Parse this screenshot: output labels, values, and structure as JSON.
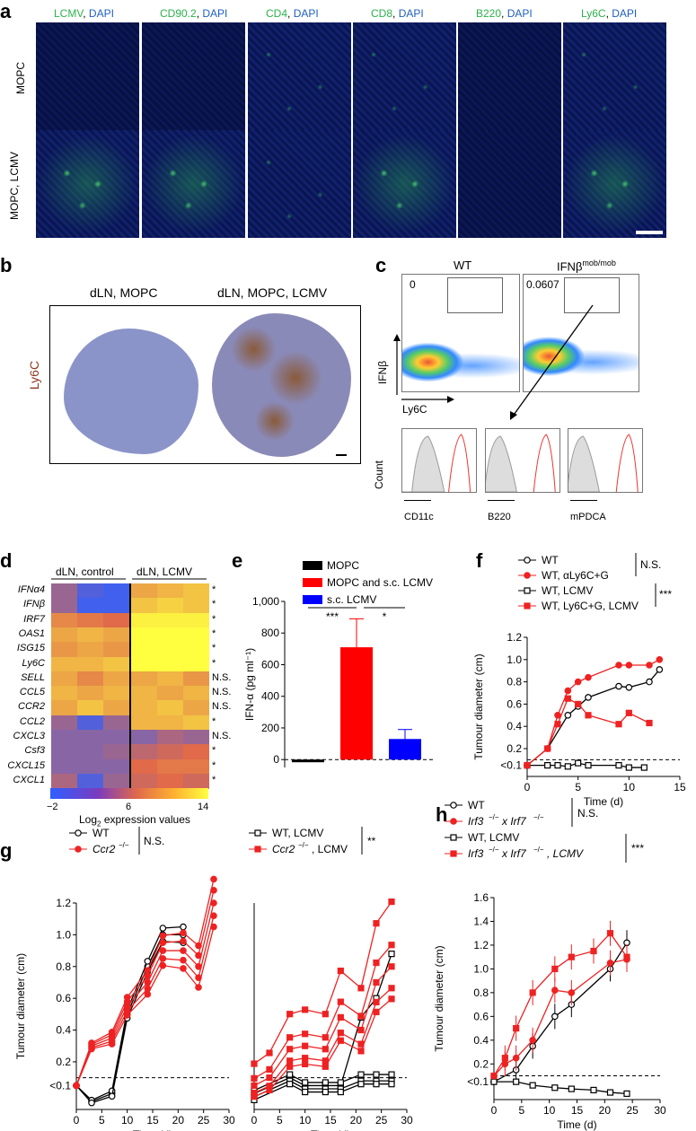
{
  "panel_a": {
    "label": "a",
    "columns": [
      {
        "marker": "LCMV",
        "sep": ", ",
        "stain": "DAPI"
      },
      {
        "marker": "CD90.2",
        "sep": ", ",
        "stain": "DAPI"
      },
      {
        "marker": "CD4",
        "sep": ", ",
        "stain": "DAPI"
      },
      {
        "marker": "CD8",
        "sep": ", ",
        "stain": "DAPI"
      },
      {
        "marker": "B220",
        "sep": ", ",
        "stain": "DAPI"
      },
      {
        "marker": "Ly6C",
        "sep": ", ",
        "stain": "DAPI"
      }
    ],
    "rows": [
      "MOPC",
      "MOPC, LCMV"
    ]
  },
  "panel_b": {
    "label": "b",
    "left_title": "dLN, MOPC",
    "right_title": "dLN, MOPC, LCMV",
    "stain": "Ly6C"
  },
  "panel_c": {
    "label": "c",
    "col1": "WT",
    "col2": "IFNβ",
    "col2_sup": "mob/mob",
    "gate1": "0",
    "gate2": "0.0607",
    "yaxis": "IFNβ",
    "xaxis": "Ly6C",
    "hist_y": "Count",
    "hist_x": [
      "CD11c",
      "B220",
      "mPDCA"
    ]
  },
  "panel_d": {
    "label": "d",
    "group1": "dLN, control",
    "group2": "dLN, LCMV",
    "genes": [
      "IFNα4",
      "IFNβ",
      "IRF7",
      "OAS1",
      "ISG15",
      "Ly6C",
      "SELL",
      "CCL5",
      "CCR2",
      "CCL2",
      "CXCL3",
      "Csf3",
      "CXCL15",
      "CXCL1"
    ],
    "sig": [
      "*",
      "*",
      "*",
      "*",
      "*",
      "*",
      "N.S.",
      "N.S.",
      "N.S.",
      "*",
      "N.S.",
      "*",
      "*",
      "*"
    ],
    "scale": [
      "−2",
      "6",
      "14"
    ],
    "scale_label_pre": "Log",
    "scale_label_sub": "2",
    "scale_label_post": " expression values",
    "colors": {
      "low": "#2f5fff",
      "mid": "#e06a4a",
      "high": "#ffff40"
    }
  },
  "chart_data": [
    {
      "type": "bar",
      "panel": "e",
      "categories": [
        "MOPC",
        "MOPC and s.c. LCMV",
        "s.c. LCMV"
      ],
      "values": [
        -15,
        710,
        130
      ],
      "errors": [
        5,
        180,
        60
      ],
      "colors": [
        "#000000",
        "#ff0000",
        "#0000ff"
      ],
      "ylabel": "IFN-α (pg ml⁻¹)",
      "ylim": [
        -50,
        1000
      ],
      "yticks": [
        "0",
        "200",
        "400",
        "600",
        "800",
        "1,000"
      ],
      "sig": [
        "***",
        "*"
      ]
    },
    {
      "type": "line",
      "panel": "f",
      "series": [
        {
          "name": "WT",
          "x": [
            0,
            2,
            4,
            5,
            6,
            9,
            10,
            12,
            13
          ],
          "y": [
            0.05,
            0.2,
            0.5,
            0.58,
            0.66,
            0.76,
            0.75,
            0.8,
            0.91
          ]
        },
        {
          "name": "WT, αLy6C+G",
          "x": [
            0,
            2,
            3,
            4,
            5,
            6,
            9,
            10,
            12,
            13
          ],
          "y": [
            0.05,
            0.2,
            0.5,
            0.72,
            0.8,
            0.84,
            0.95,
            0.95,
            0.95,
            1.0
          ]
        },
        {
          "name": "WT, LCMV",
          "x": [
            0,
            2,
            3,
            4,
            5,
            6,
            9,
            10,
            11.5
          ],
          "y": [
            0.05,
            0.05,
            0.05,
            0.04,
            0.07,
            0.05,
            0.05,
            0.03,
            0.03
          ]
        },
        {
          "name": "WT, Ly6C+G, LCMV",
          "x": [
            0,
            2,
            3,
            4,
            5,
            6,
            9,
            10,
            12
          ],
          "y": [
            0.05,
            0.2,
            0.42,
            0.65,
            0.6,
            0.5,
            0.42,
            0.52,
            0.43
          ]
        }
      ],
      "xlabel": "Time (d)",
      "ylabel": "Tumour diameter (cm)",
      "yticks": [
        "<0.1",
        "0.2",
        "0.4",
        "0.6",
        "0.8",
        "1.0",
        "1.2"
      ],
      "xticks": [
        "0",
        "5",
        "10",
        "15"
      ],
      "sig1": "N.S.",
      "sig2": "***"
    },
    {
      "type": "line",
      "panel": "g-left",
      "series": [
        {
          "name": "WT",
          "x": [
            0,
            3,
            7,
            10,
            14,
            17,
            21
          ],
          "y": [
            0.05,
            -0.05,
            0.0,
            0.5,
            0.8,
            1.0,
            1.0
          ]
        },
        {
          "name": "Ccr2−/−",
          "x": [
            0,
            3,
            7,
            10,
            14,
            17,
            21,
            24,
            27
          ],
          "y": [
            0.05,
            0.3,
            0.35,
            0.55,
            0.7,
            0.9,
            0.9,
            0.8,
            1.2
          ]
        }
      ],
      "legend": [
        "WT",
        "Ccr2"
      ],
      "legend_sup": "−/−",
      "sig": "N.S.",
      "xlabel": "Time (d)",
      "ylabel": "Tumour diameter (cm)",
      "yticks": [
        "<0.1",
        "0.2",
        "0.4",
        "0.6",
        "0.8",
        "1.0",
        "1.2"
      ],
      "xticks": [
        "0",
        "5",
        "10",
        "15",
        "20",
        "25",
        "30"
      ]
    },
    {
      "type": "line",
      "panel": "g-right",
      "series": [
        {
          "name": "WT, LCMV",
          "x": [
            0,
            7,
            10,
            14,
            17,
            21,
            24,
            27
          ],
          "y": [
            0.0,
            0.1,
            0.05,
            0.05,
            0.05,
            0.48,
            0.6,
            0.88
          ]
        },
        {
          "name": "Ccr2−/−, LCMV",
          "x": [
            0,
            3,
            7,
            10,
            14,
            17,
            21,
            24,
            27
          ],
          "y": [
            0.05,
            0.1,
            0.28,
            0.3,
            0.28,
            0.48,
            0.4,
            0.7,
            0.8
          ]
        }
      ],
      "legend": [
        "WT, LCMV",
        "Ccr2"
      ],
      "legend2_suffix": ", LCMV",
      "legend_sup": "−/−",
      "sig": "**",
      "xlabel": "Time (d)",
      "xticks": [
        "0",
        "5",
        "10",
        "15",
        "20",
        "25",
        "30"
      ]
    },
    {
      "type": "line",
      "panel": "h",
      "series": [
        {
          "name": "WT",
          "x": [
            0,
            4,
            7,
            11,
            14,
            21,
            24
          ],
          "y": [
            0.05,
            0.15,
            0.35,
            0.6,
            0.7,
            1.0,
            1.22
          ]
        },
        {
          "name": "Irf3−/− x Irf7−/−",
          "x": [
            0,
            2,
            4,
            7,
            11,
            14,
            21,
            24
          ],
          "y": [
            0.1,
            0.2,
            0.25,
            0.4,
            0.82,
            0.8,
            1.05,
            1.08
          ]
        },
        {
          "name": "WT, LCMV",
          "x": [
            0,
            4,
            7,
            11,
            14,
            18,
            21,
            24
          ],
          "y": [
            0.05,
            0.05,
            0.02,
            0.0,
            -0.01,
            -0.02,
            -0.04,
            -0.05
          ]
        },
        {
          "name": "Irf3−/− x Irf7−/−, LCMV",
          "x": [
            0,
            2,
            4,
            7,
            11,
            14,
            18,
            21,
            24
          ],
          "y": [
            0.1,
            0.25,
            0.5,
            0.8,
            1.0,
            1.1,
            1.15,
            1.3,
            1.1
          ]
        }
      ],
      "legend": [
        "WT",
        "Irf3",
        "x Irf7",
        "WT, LCMV",
        ", LCMV"
      ],
      "legend_sup": "−/−",
      "sig1": "N.S.",
      "sig2": "***",
      "xlabel": "Time (d)",
      "ylabel": "Tumour diameter (cm)",
      "yticks": [
        "<0.1",
        "0.2",
        "0.4",
        "0.6",
        "0.8",
        "1.0",
        "1.2",
        "1.4",
        "1.6"
      ],
      "xticks": [
        "0",
        "5",
        "10",
        "15",
        "20",
        "25",
        "30"
      ]
    }
  ],
  "panel_labels": {
    "e": "e",
    "f": "f",
    "g": "g",
    "h": "h"
  }
}
